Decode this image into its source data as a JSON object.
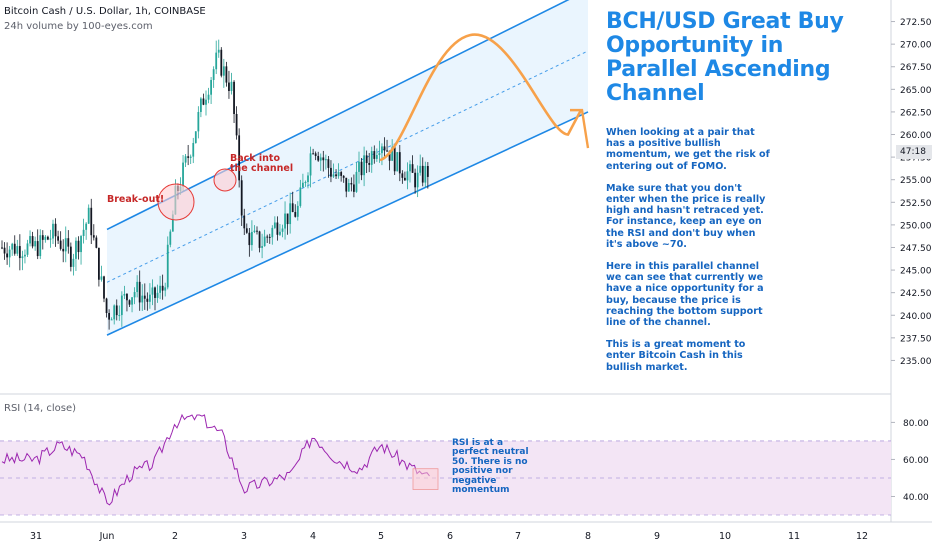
{
  "header": {
    "symbol_line": "Bitcoin Cash / U.S. Dollar, 1h, COINBASE",
    "volume_line": "24h volume by 100-eyes.com"
  },
  "rsi_label": "RSI (14, close)",
  "title": "BCH/USD Great Buy Opportunity in Parallel Ascending Channel",
  "notes": [
    "When looking at a pair that has a positive bullish momentum, we get the risk of entering out of FOMO.",
    "Make sure that you don't enter when the price is really high and hasn't retraced yet. For instance, keep an eye on the RSI and don't buy when it's above ~70.",
    "Here in this parallel channel we can see that currently we have a nice opportunity for a buy, because the price is reaching the bottom support line of the channel.",
    "This is a great moment to enter Bitcoin Cash in this bullish market."
  ],
  "callouts": {
    "breakout": "Break-out!",
    "back_in": "Back into the channel"
  },
  "rsi_note": "RSI is at a perfect neutral 50. There is no positive nor negative momentum",
  "price_tag": "47:18",
  "colors": {
    "up": "#26a69a",
    "down": "#131722",
    "channel": "#1e88e5",
    "channel_fill": "#e3f2fd",
    "projection": "#f7a14a",
    "rsi_line": "#9c27b0",
    "rsi_fill": "#f3e5f5",
    "callout": "#e53935"
  },
  "chart_data": [
    {
      "type": "line",
      "subtype": "candlestick",
      "y_axis": {
        "position": "right",
        "ticks": [
          "272.50",
          "270.00",
          "267.50",
          "265.00",
          "262.50",
          "260.00",
          "257.50",
          "255.00",
          "252.50",
          "250.00",
          "247.50",
          "245.00",
          "242.50",
          "240.00",
          "237.50",
          "235.00"
        ],
        "ylim": [
          233.5,
          274
        ]
      },
      "x_axis": {
        "ticks": [
          "31",
          "Jun",
          "2",
          "3",
          "4",
          "5",
          "6",
          "7",
          "8",
          "9",
          "10",
          "11",
          "12"
        ]
      },
      "series": [
        {
          "close_path": [
            [
              "31",
              247.5
            ],
            [
              "31",
              249.0
            ],
            [
              "31",
              246.5
            ],
            [
              "31",
              251.0
            ],
            [
              "Jun",
              240.0
            ],
            [
              "Jun",
              241.5
            ],
            [
              "Jun",
              242.8
            ],
            [
              "Jun",
              241.5
            ],
            [
              "Jun",
              243.0
            ],
            [
              "2",
              253.0
            ],
            [
              "2",
              258.0
            ],
            [
              "2",
              264.0
            ],
            [
              "2",
              268.5
            ],
            [
              "2",
              265.0
            ],
            [
              "3",
              249.0
            ],
            [
              "3",
              248.0
            ],
            [
              "3",
              250.5
            ],
            [
              "3",
              251.5
            ],
            [
              "4",
              259.0
            ],
            [
              "4",
              256.0
            ],
            [
              "4",
              254.0
            ],
            [
              "4",
              257.0
            ],
            [
              "5",
              259.5
            ],
            [
              "5",
              256.5
            ],
            [
              "5",
              255.0
            ],
            [
              "5",
              256.5
            ]
          ]
        }
      ],
      "channel": {
        "upper": [
          [
            "Jun",
            249.5
          ],
          [
            "8",
            276.0
          ]
        ],
        "lower": [
          [
            "Jun",
            237.8
          ],
          [
            "8",
            262.5
          ]
        ]
      },
      "projection": [
        [
          "5",
          257.2
        ],
        [
          "6",
          263.0
        ],
        [
          "7",
          266.0
        ],
        [
          "8",
          263.5
        ]
      ],
      "annotations": [
        "Break-out!",
        "Back into the channel"
      ]
    },
    {
      "type": "line",
      "name": "RSI (14, close)",
      "y_axis": {
        "ticks": [
          "80.00",
          "60.00",
          "40.00"
        ],
        "ylim": [
          30,
          84
        ]
      },
      "band": [
        30,
        70
      ],
      "series": [
        {
          "points": [
            [
              "31",
              60
            ],
            [
              "31",
              68
            ],
            [
              "31",
              62
            ],
            [
              "Jun",
              36
            ],
            [
              "Jun",
              52
            ],
            [
              "Jun",
              58
            ],
            [
              "2",
              80
            ],
            [
              "2",
              84
            ],
            [
              "2",
              73
            ],
            [
              "3",
              44
            ],
            [
              "3",
              48
            ],
            [
              "3",
              52
            ],
            [
              "4",
              73
            ],
            [
              "4",
              60
            ],
            [
              "4",
              55
            ],
            [
              "5",
              68
            ],
            [
              "5",
              58
            ],
            [
              "5",
              50
            ]
          ]
        }
      ],
      "annotations": [
        "RSI is at a perfect neutral 50. There is no positive nor negative momentum"
      ]
    }
  ]
}
